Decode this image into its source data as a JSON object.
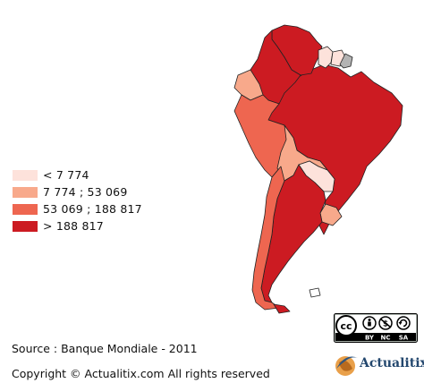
{
  "colors": {
    "class1": "#fde2db",
    "class2": "#f8a98b",
    "class3": "#ee6650",
    "class4": "#cc1b22",
    "nodata": "#b3b3b3",
    "border": "#222222"
  },
  "legend": [
    {
      "label": "< 7 774",
      "color": "#fde2db"
    },
    {
      "label": "7 774 ; 53 069",
      "color": "#f8a98b"
    },
    {
      "label": "53 069 ; 188 817",
      "color": "#ee6650"
    },
    {
      "label": "> 188 817",
      "color": "#cc1b22"
    }
  ],
  "countries": [
    {
      "name": "Colombia",
      "class": 4
    },
    {
      "name": "Venezuela",
      "class": 4
    },
    {
      "name": "Guyana",
      "class": 1
    },
    {
      "name": "Suriname",
      "class": 1
    },
    {
      "name": "French Guiana",
      "class": 0
    },
    {
      "name": "Ecuador",
      "class": 2
    },
    {
      "name": "Peru",
      "class": 3
    },
    {
      "name": "Brazil",
      "class": 4
    },
    {
      "name": "Bolivia",
      "class": 2
    },
    {
      "name": "Paraguay",
      "class": 1
    },
    {
      "name": "Chile",
      "class": 3
    },
    {
      "name": "Argentina",
      "class": 4
    },
    {
      "name": "Uruguay",
      "class": 2
    }
  ],
  "source": "Source : Banque Mondiale - 2011",
  "copyright": "Copyright © Actualitix.com All rights reserved",
  "license": {
    "cc": "cc",
    "by": "BY",
    "nc": "NC",
    "sa": "SA"
  },
  "brand": "Actualitix"
}
